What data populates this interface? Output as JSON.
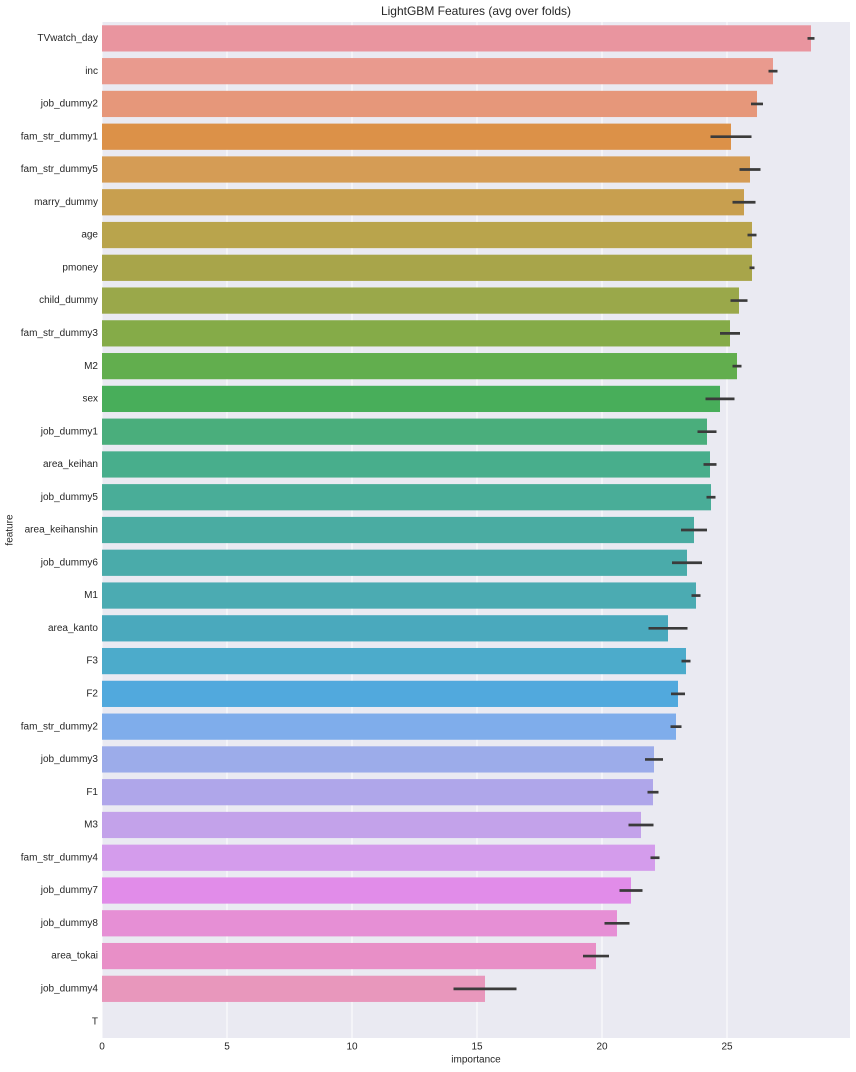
{
  "chart_data": {
    "type": "barh",
    "title": "LightGBM Features (avg over folds)",
    "x_label": "importance",
    "y_label": "feature",
    "categories": [
      "TVwatch_day",
      "inc",
      "job_dummy2",
      "fam_str_dummy1",
      "fam_str_dummy5",
      "marry_dummy",
      "age",
      "pmoney",
      "child_dummy",
      "fam_str_dummy3",
      "M2",
      "sex",
      "job_dummy1",
      "area_keihan",
      "job_dummy5",
      "area_keihanshin",
      "job_dummy6",
      "M1",
      "area_kanto",
      "F3",
      "F2",
      "fam_str_dummy2",
      "job_dummy3",
      "F1",
      "M3",
      "fam_str_dummy4",
      "job_dummy7",
      "job_dummy8",
      "area_tokai",
      "job_dummy4",
      "T"
    ],
    "values": [
      28.36,
      26.84,
      26.2,
      25.16,
      25.92,
      25.68,
      26.0,
      26.0,
      25.48,
      25.12,
      25.4,
      24.72,
      24.2,
      24.32,
      24.36,
      23.68,
      23.4,
      23.76,
      22.64,
      23.36,
      23.04,
      22.96,
      22.08,
      22.04,
      21.56,
      22.12,
      21.16,
      20.6,
      19.76,
      15.32,
      0
    ],
    "errors": [
      0.14,
      0.18,
      0.24,
      0.82,
      0.42,
      0.46,
      0.18,
      0.1,
      0.34,
      0.4,
      0.18,
      0.58,
      0.38,
      0.26,
      0.18,
      0.52,
      0.6,
      0.18,
      0.78,
      0.18,
      0.28,
      0.22,
      0.36,
      0.22,
      0.5,
      0.18,
      0.46,
      0.5,
      0.52,
      1.26,
      0
    ],
    "colors": [
      "#e9959f",
      "#e99a8e",
      "#e6977a",
      "#dc9148",
      "#d59c55",
      "#c89f4f",
      "#b9a44c",
      "#a8a54a",
      "#9aa84a",
      "#85ab48",
      "#62ae4e",
      "#48ae5a",
      "#4aae7c",
      "#48ae8c",
      "#49ad98",
      "#4aaca2",
      "#4aabaa",
      "#4babb2",
      "#4aa9bd",
      "#4cabcb",
      "#51a9dd",
      "#7fadeb",
      "#9cacea",
      "#afa6ea",
      "#c3a2ea",
      "#d49cec",
      "#e18ce9",
      "#e68fd5",
      "#e88fc7",
      "#e897bc",
      "#e898b0"
    ],
    "error_color": "#3b3b3b",
    "xlim": [
      0,
      29.92
    ],
    "xticks": [
      0,
      5,
      10,
      15,
      20,
      25
    ],
    "grid": true
  }
}
